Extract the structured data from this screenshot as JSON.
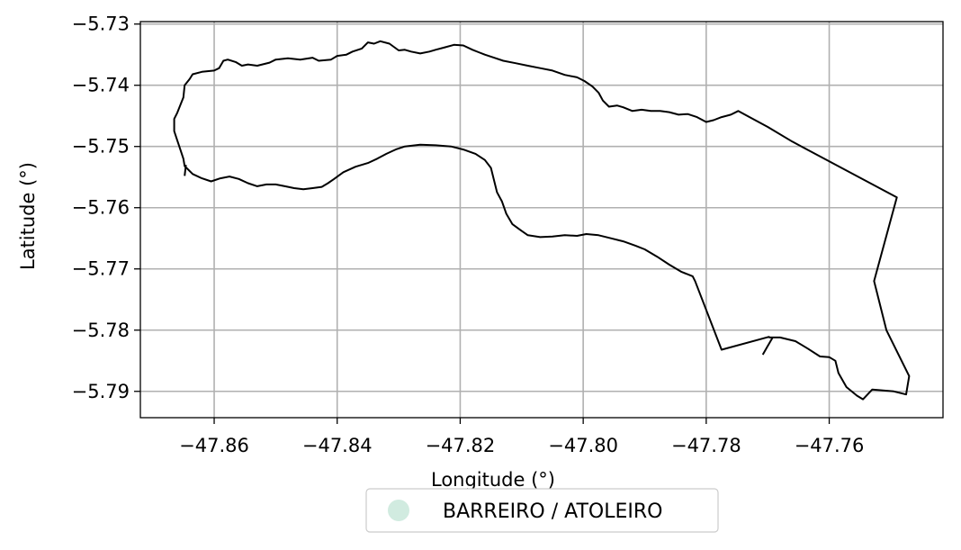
{
  "chart_data": {
    "type": "map",
    "title": "",
    "xlabel": "Longitude (°)",
    "ylabel": "Latitude (°)",
    "xlim": [
      -47.872,
      -47.7415
    ],
    "ylim": [
      -5.7943,
      -5.7296
    ],
    "xticks": [
      -47.86,
      -47.84,
      -47.82,
      -47.8,
      -47.78,
      -47.76
    ],
    "xtick_labels": [
      "−47.86",
      "−47.84",
      "−47.82",
      "−47.80",
      "−47.78",
      "−47.76"
    ],
    "yticks": [
      -5.73,
      -5.74,
      -5.75,
      -5.76,
      -5.77,
      -5.78,
      -5.79
    ],
    "ytick_labels": [
      "−5.73",
      "−5.74",
      "−5.75",
      "−5.76",
      "−5.77",
      "−5.78",
      "−5.79"
    ],
    "grid": true,
    "legend_position": "bottom-center",
    "series": [
      {
        "name": "BARREIRO / ATOLEIRO",
        "marker_color": "#d1ebe0",
        "outline_color": "#000000",
        "outline": [
          [
            -47.8665,
            -5.7455
          ],
          [
            -47.866,
            -5.7445
          ],
          [
            -47.865,
            -5.742
          ],
          [
            -47.8648,
            -5.74
          ],
          [
            -47.864,
            -5.739
          ],
          [
            -47.8635,
            -5.7382
          ],
          [
            -47.862,
            -5.7378
          ],
          [
            -47.86,
            -5.7376
          ],
          [
            -47.8592,
            -5.7372
          ],
          [
            -47.8585,
            -5.736
          ],
          [
            -47.8578,
            -5.7358
          ],
          [
            -47.8565,
            -5.7362
          ],
          [
            -47.8555,
            -5.7368
          ],
          [
            -47.8545,
            -5.7366
          ],
          [
            -47.853,
            -5.7368
          ],
          [
            -47.851,
            -5.7363
          ],
          [
            -47.85,
            -5.7358
          ],
          [
            -47.848,
            -5.7356
          ],
          [
            -47.846,
            -5.7358
          ],
          [
            -47.844,
            -5.7355
          ],
          [
            -47.843,
            -5.736
          ],
          [
            -47.841,
            -5.7358
          ],
          [
            -47.84,
            -5.7352
          ],
          [
            -47.8385,
            -5.735
          ],
          [
            -47.8375,
            -5.7345
          ],
          [
            -47.836,
            -5.734
          ],
          [
            -47.835,
            -5.733
          ],
          [
            -47.834,
            -5.7332
          ],
          [
            -47.833,
            -5.7328
          ],
          [
            -47.8315,
            -5.7332
          ],
          [
            -47.83,
            -5.7343
          ],
          [
            -47.829,
            -5.7342
          ],
          [
            -47.828,
            -5.7345
          ],
          [
            -47.8265,
            -5.7348
          ],
          [
            -47.825,
            -5.7345
          ],
          [
            -47.824,
            -5.7342
          ],
          [
            -47.8225,
            -5.7338
          ],
          [
            -47.821,
            -5.7334
          ],
          [
            -47.8195,
            -5.7335
          ],
          [
            -47.818,
            -5.7342
          ],
          [
            -47.817,
            -5.7346
          ],
          [
            -47.816,
            -5.735
          ],
          [
            -47.8145,
            -5.7355
          ],
          [
            -47.813,
            -5.736
          ],
          [
            -47.811,
            -5.7364
          ],
          [
            -47.809,
            -5.7368
          ],
          [
            -47.807,
            -5.7372
          ],
          [
            -47.805,
            -5.7376
          ],
          [
            -47.803,
            -5.7383
          ],
          [
            -47.801,
            -5.7387
          ],
          [
            -47.7998,
            -5.7393
          ],
          [
            -47.7985,
            -5.7402
          ],
          [
            -47.7975,
            -5.7412
          ],
          [
            -47.7968,
            -5.7425
          ],
          [
            -47.7958,
            -5.7435
          ],
          [
            -47.7945,
            -5.7433
          ],
          [
            -47.7935,
            -5.7436
          ],
          [
            -47.792,
            -5.7442
          ],
          [
            -47.7905,
            -5.744
          ],
          [
            -47.789,
            -5.7442
          ],
          [
            -47.7875,
            -5.7442
          ],
          [
            -47.786,
            -5.7444
          ],
          [
            -47.7845,
            -5.7448
          ],
          [
            -47.783,
            -5.7447
          ],
          [
            -47.7815,
            -5.7452
          ],
          [
            -47.78,
            -5.746
          ],
          [
            -47.7788,
            -5.7457
          ],
          [
            -47.7775,
            -5.7452
          ],
          [
            -47.776,
            -5.7448
          ],
          [
            -47.7748,
            -5.7442
          ],
          [
            -47.77,
            -5.7468
          ],
          [
            -47.766,
            -5.7492
          ],
          [
            -47.749,
            -5.7583
          ],
          [
            -47.7527,
            -5.772
          ],
          [
            -47.7507,
            -5.78
          ],
          [
            -47.747,
            -5.7875
          ],
          [
            -47.7475,
            -5.7905
          ],
          [
            -47.7495,
            -5.79
          ],
          [
            -47.753,
            -5.7897
          ],
          [
            -47.7545,
            -5.7913
          ],
          [
            -47.7555,
            -5.7907
          ],
          [
            -47.7572,
            -5.7893
          ],
          [
            -47.7585,
            -5.787
          ],
          [
            -47.759,
            -5.785
          ],
          [
            -47.76,
            -5.7844
          ],
          [
            -47.7615,
            -5.7843
          ],
          [
            -47.7635,
            -5.783
          ],
          [
            -47.7655,
            -5.7818
          ],
          [
            -47.768,
            -5.7812
          ],
          [
            -47.7697,
            -5.7812
          ],
          [
            -47.7698,
            -5.7811
          ],
          [
            -47.7775,
            -5.7832
          ],
          [
            -47.7818,
            -5.772
          ],
          [
            -47.7822,
            -5.7712
          ],
          [
            -47.784,
            -5.7705
          ],
          [
            -47.786,
            -5.7693
          ],
          [
            -47.788,
            -5.768
          ],
          [
            -47.79,
            -5.7668
          ],
          [
            -47.7915,
            -5.7662
          ],
          [
            -47.7935,
            -5.7655
          ],
          [
            -47.7955,
            -5.765
          ],
          [
            -47.7975,
            -5.7645
          ],
          [
            -47.7995,
            -5.7643
          ],
          [
            -47.801,
            -5.7646
          ],
          [
            -47.803,
            -5.7645
          ],
          [
            -47.805,
            -5.7647
          ],
          [
            -47.807,
            -5.7648
          ],
          [
            -47.809,
            -5.7645
          ],
          [
            -47.81,
            -5.7638
          ],
          [
            -47.8115,
            -5.7627
          ],
          [
            -47.8125,
            -5.761
          ],
          [
            -47.8132,
            -5.759
          ],
          [
            -47.814,
            -5.7575
          ],
          [
            -47.8145,
            -5.7555
          ],
          [
            -47.815,
            -5.7535
          ],
          [
            -47.816,
            -5.7522
          ],
          [
            -47.8175,
            -5.7512
          ],
          [
            -47.8195,
            -5.7505
          ],
          [
            -47.8215,
            -5.75
          ],
          [
            -47.824,
            -5.7498
          ],
          [
            -47.8265,
            -5.7497
          ],
          [
            -47.829,
            -5.75
          ],
          [
            -47.8305,
            -5.7505
          ],
          [
            -47.832,
            -5.7512
          ],
          [
            -47.8335,
            -5.752
          ],
          [
            -47.835,
            -5.7527
          ],
          [
            -47.837,
            -5.7533
          ],
          [
            -47.839,
            -5.7542
          ],
          [
            -47.8405,
            -5.7553
          ],
          [
            -47.8415,
            -5.756
          ],
          [
            -47.8425,
            -5.7566
          ],
          [
            -47.844,
            -5.7568
          ],
          [
            -47.8455,
            -5.757
          ],
          [
            -47.847,
            -5.7568
          ],
          [
            -47.8485,
            -5.7565
          ],
          [
            -47.85,
            -5.7562
          ],
          [
            -47.8515,
            -5.7562
          ],
          [
            -47.853,
            -5.7565
          ],
          [
            -47.8545,
            -5.756
          ],
          [
            -47.856,
            -5.7553
          ],
          [
            -47.8575,
            -5.7549
          ],
          [
            -47.859,
            -5.7552
          ],
          [
            -47.8605,
            -5.7557
          ],
          [
            -47.862,
            -5.7552
          ],
          [
            -47.8635,
            -5.7545
          ],
          [
            -47.8648,
            -5.7532
          ],
          [
            -47.865,
            -5.752
          ],
          [
            -47.8655,
            -5.7505
          ],
          [
            -47.866,
            -5.749
          ],
          [
            -47.8665,
            -5.7475
          ],
          [
            -47.8665,
            -5.7455
          ]
        ],
        "extra_lines": [
          [
            [
              -47.8648,
              -5.7548
            ],
            [
              -47.8646,
              -5.753
            ]
          ],
          [
            [
              -47.7692,
              -5.7812
            ],
            [
              -47.77,
              -5.7826
            ],
            [
              -47.7708,
              -5.784
            ]
          ]
        ]
      }
    ]
  }
}
